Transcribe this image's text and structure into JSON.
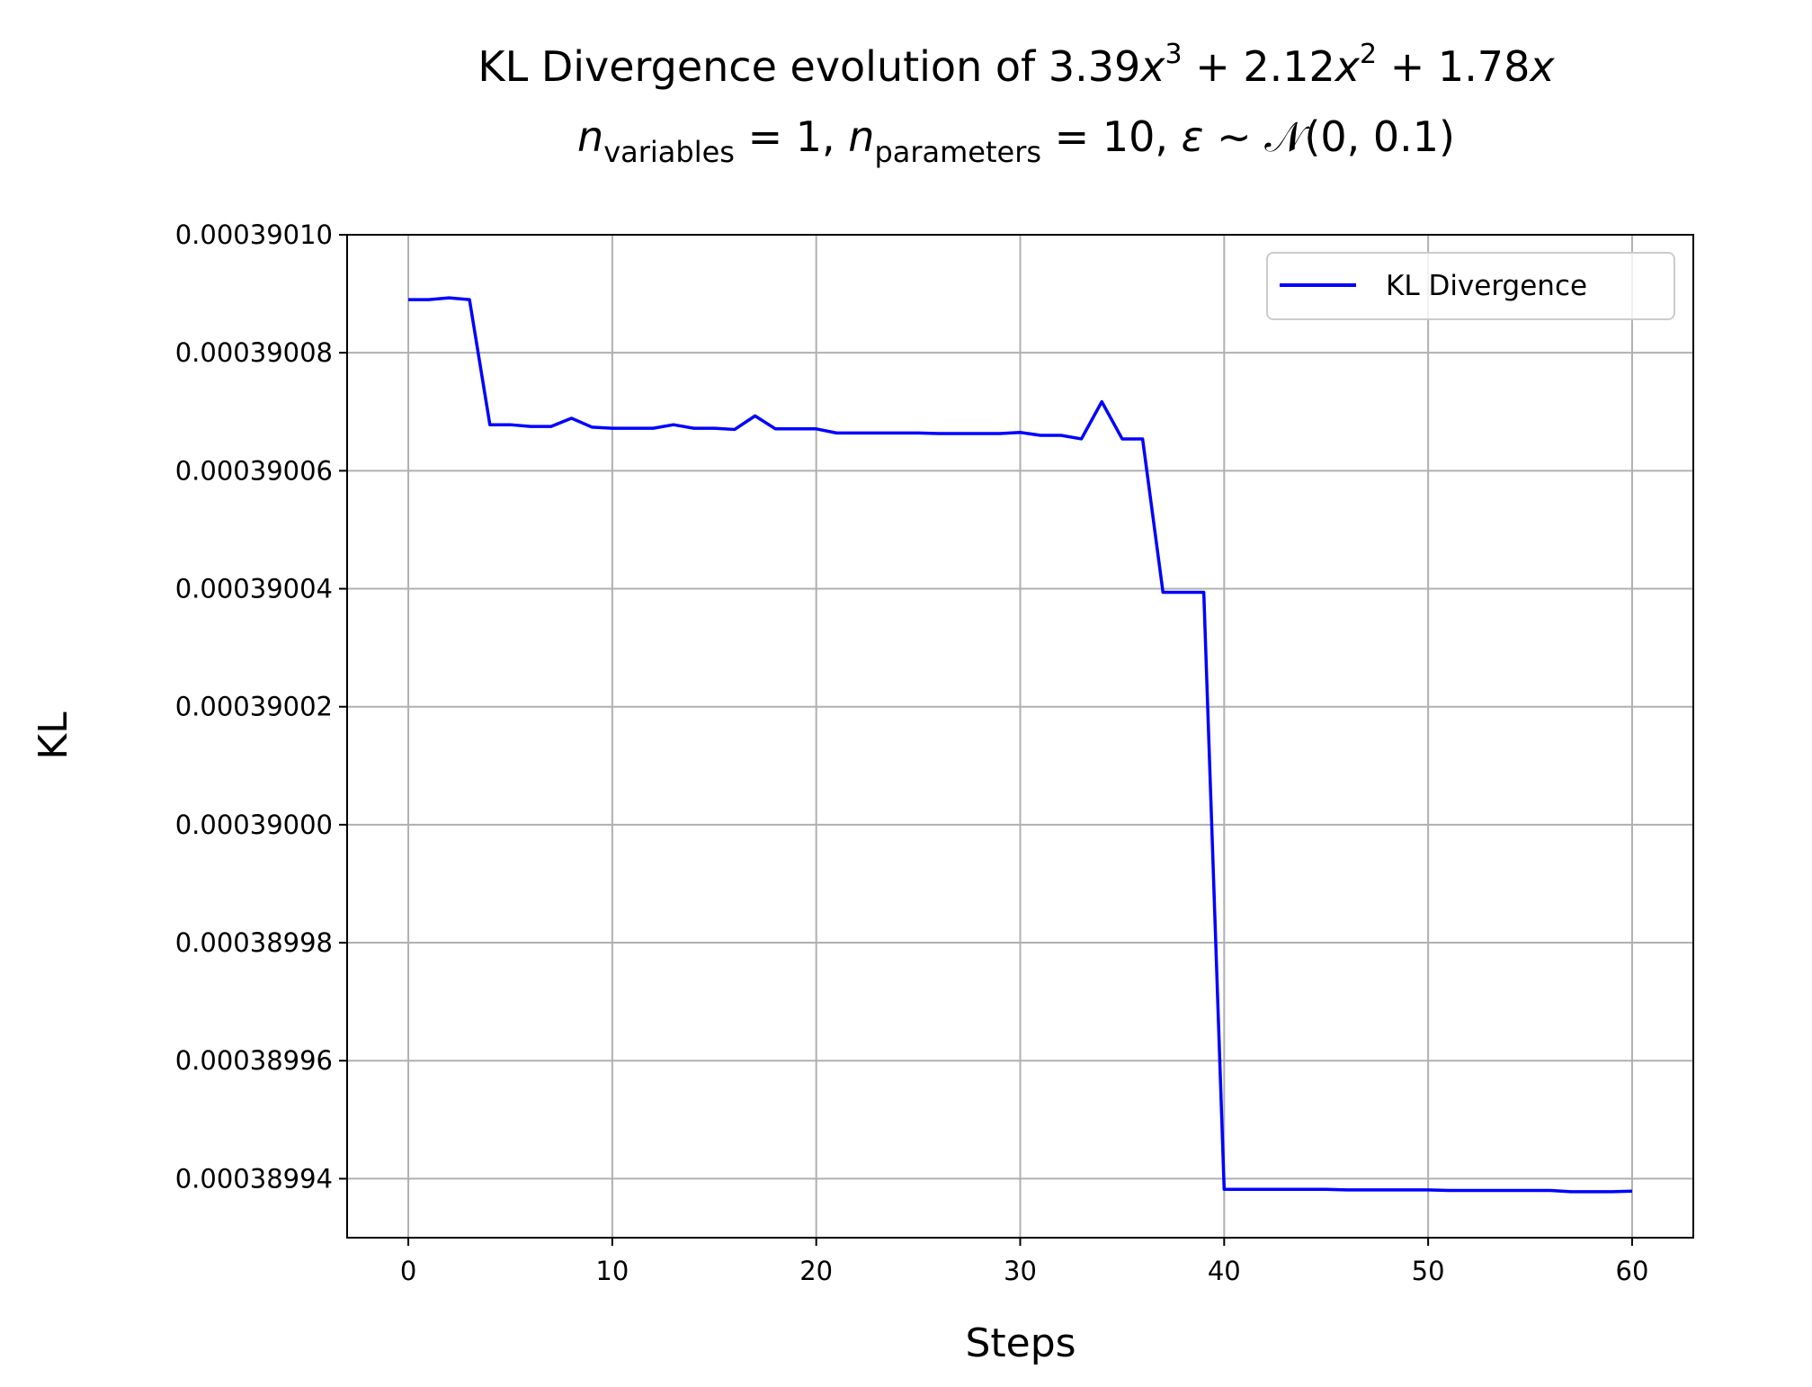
{
  "chart_data": {
    "type": "line",
    "title_line1": {
      "prefix": "KL Divergence evolution of ",
      "c3": "3.39",
      "x": "x",
      "exp3": "3",
      "plus1": " + ",
      "c2": "2.12",
      "exp2": "2",
      "plus2": " + ",
      "c1": "1.78"
    },
    "title_line2": {
      "n": "n",
      "sub_variables": "variables",
      "eq_vars": " = 1, ",
      "sub_parameters": "parameters",
      "eq_params": " = 10, ",
      "eps": "ε",
      "tilde": " ~ ",
      "normal": "𝒩",
      "dist": "(0, 0.1)"
    },
    "xlabel": "Steps",
    "ylabel": "KL",
    "xlim": [
      -3,
      63
    ],
    "ylim": [
      0.00038993,
      0.0003901
    ],
    "xticks": [
      0,
      10,
      20,
      30,
      40,
      50,
      60
    ],
    "xtick_labels": [
      "0",
      "10",
      "20",
      "30",
      "40",
      "50",
      "60"
    ],
    "yticks": [
      0.00038994,
      0.00038996,
      0.00038998,
      0.00039,
      0.00039002,
      0.00039004,
      0.00039006,
      0.00039008,
      0.0003901
    ],
    "ytick_labels": [
      "0.00038994",
      "0.00038996",
      "0.00038998",
      "0.00039000",
      "0.00039002",
      "0.00039004",
      "0.00039006",
      "0.00039008",
      "0.00039010"
    ],
    "grid": true,
    "legend_position": "top-right",
    "series": [
      {
        "name": "KL Divergence",
        "color": "#0000ff",
        "x": [
          0,
          1,
          2,
          3,
          4,
          5,
          6,
          7,
          8,
          9,
          10,
          11,
          12,
          13,
          14,
          15,
          16,
          17,
          18,
          19,
          20,
          21,
          22,
          23,
          24,
          25,
          26,
          27,
          28,
          29,
          30,
          31,
          32,
          33,
          34,
          35,
          36,
          37,
          38,
          39,
          40,
          41,
          42,
          43,
          44,
          45,
          46,
          47,
          48,
          49,
          50,
          51,
          52,
          53,
          54,
          55,
          56,
          57,
          58,
          59,
          60
        ],
        "y": [
          0.000390089,
          0.000390089,
          0.0003900893,
          0.000390089,
          0.0003900678,
          0.0003900678,
          0.0003900675,
          0.0003900675,
          0.0003900689,
          0.0003900674,
          0.0003900672,
          0.0003900672,
          0.0003900672,
          0.0003900678,
          0.0003900672,
          0.0003900672,
          0.000390067,
          0.0003900693,
          0.0003900671,
          0.0003900671,
          0.0003900671,
          0.0003900664,
          0.0003900664,
          0.0003900664,
          0.0003900664,
          0.0003900664,
          0.0003900663,
          0.0003900663,
          0.0003900663,
          0.0003900663,
          0.0003900665,
          0.000390066,
          0.000390066,
          0.0003900654,
          0.0003900717,
          0.0003900654,
          0.0003900654,
          0.0003900394,
          0.0003900394,
          0.0003900394,
          0.0003899382,
          0.0003899382,
          0.0003899382,
          0.0003899382,
          0.0003899382,
          0.0003899382,
          0.0003899381,
          0.0003899381,
          0.0003899381,
          0.0003899381,
          0.0003899381,
          0.000389938,
          0.000389938,
          0.000389938,
          0.000389938,
          0.000389938,
          0.000389938,
          0.0003899378,
          0.0003899378,
          0.0003899378,
          0.0003899379
        ]
      }
    ]
  }
}
